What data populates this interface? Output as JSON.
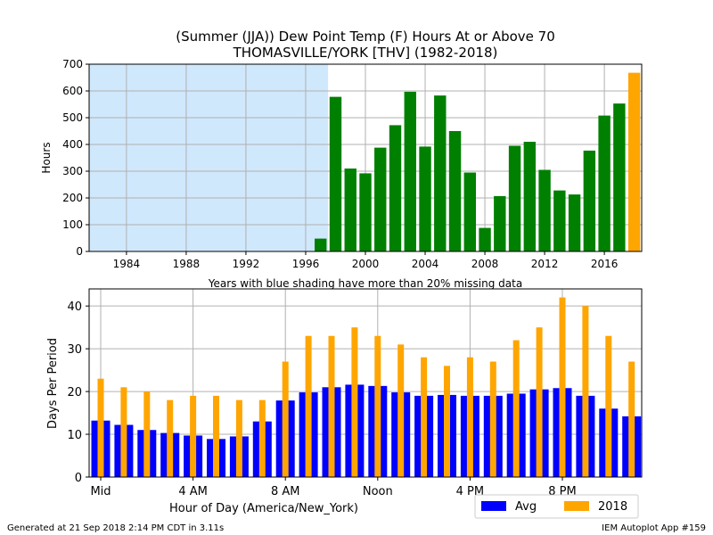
{
  "title_line1": "(Summer (JJA)) Dew Point Temp (F) Hours At or Above 70",
  "title_line2": "THOMASVILLE/YORK [THV] (1982-2018)",
  "footer_left": "Generated at 21 Sep 2018 2:14 PM CDT in 3.11s",
  "footer_right": "IEM Autoplot App #159",
  "colors": {
    "missing_shade": "#d0e8fc",
    "year_bar": "#008000",
    "current_year_bar": "#ffa500",
    "avg_bar": "#0000ff",
    "year2018_bar": "#ffa500",
    "grid": "#b0b0b0"
  },
  "chart_data": [
    {
      "type": "bar",
      "xlabel": "Years with blue shading have more than 20% missing data",
      "ylabel": "Hours",
      "xlim": [
        1981.5,
        2018.5
      ],
      "ylim": [
        0,
        700
      ],
      "xticks": [
        1984,
        1988,
        1992,
        1996,
        2000,
        2004,
        2008,
        2012,
        2016
      ],
      "yticks": [
        0,
        100,
        200,
        300,
        400,
        500,
        600,
        700
      ],
      "grid": true,
      "missing_shade_range": [
        1981.5,
        1997.5
      ],
      "x": [
        1997,
        1998,
        1999,
        2000,
        2001,
        2002,
        2003,
        2004,
        2005,
        2006,
        2007,
        2008,
        2009,
        2010,
        2011,
        2012,
        2013,
        2014,
        2015,
        2016,
        2017,
        2018
      ],
      "values": [
        48,
        578,
        310,
        292,
        388,
        472,
        597,
        392,
        583,
        450,
        295,
        88,
        207,
        395,
        410,
        305,
        228,
        213,
        377,
        508,
        553,
        668
      ],
      "highlight_year": 2018
    },
    {
      "type": "bar",
      "xlabel": "Hour of Day (America/New_York)",
      "ylabel": "Days Per Period",
      "ylim": [
        0,
        44
      ],
      "yticks": [
        0,
        10,
        20,
        30,
        40
      ],
      "xtick_labels": [
        {
          "hour": 0,
          "label": "Mid"
        },
        {
          "hour": 4,
          "label": "4 AM"
        },
        {
          "hour": 8,
          "label": "8 AM"
        },
        {
          "hour": 12,
          "label": "Noon"
        },
        {
          "hour": 16,
          "label": "4 PM"
        },
        {
          "hour": 20,
          "label": "8 PM"
        }
      ],
      "grid": true,
      "hours": [
        0,
        1,
        2,
        3,
        4,
        5,
        6,
        7,
        8,
        9,
        10,
        11,
        12,
        13,
        14,
        15,
        16,
        17,
        18,
        19,
        20,
        21,
        22,
        23
      ],
      "legend_position": "below-right",
      "series": [
        {
          "name": "Avg",
          "values": [
            13.2,
            12.2,
            11.0,
            10.3,
            9.7,
            8.9,
            9.5,
            13.0,
            17.9,
            19.8,
            21.0,
            21.6,
            21.3,
            19.8,
            19.0,
            19.2,
            19.0,
            19.0,
            19.5,
            20.5,
            20.8,
            19.0,
            16.0,
            14.2
          ]
        },
        {
          "name": "2018",
          "values": [
            23,
            21,
            20,
            18,
            19,
            19,
            18,
            18,
            27,
            33,
            33,
            35,
            33,
            31,
            28,
            26,
            28,
            27,
            32,
            35,
            42,
            40,
            33,
            27
          ]
        }
      ]
    }
  ]
}
